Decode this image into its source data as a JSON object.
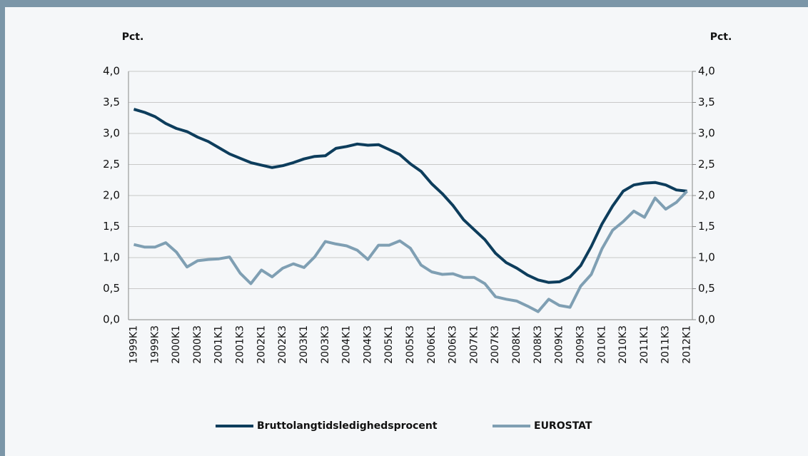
{
  "chart_data": {
    "type": "line",
    "categories": [
      "1999K1",
      null,
      "1999K3",
      null,
      "2000K1",
      null,
      "2000K3",
      null,
      "2001K1",
      null,
      "2001K3",
      null,
      "2002K1",
      null,
      "2002K3",
      null,
      "2003K1",
      null,
      "2003K3",
      null,
      "2004K1",
      null,
      "2004K3",
      null,
      "2005K1",
      null,
      "2005K3",
      null,
      "2006K1",
      null,
      "2006K3",
      null,
      "2007K1",
      null,
      "2007K3",
      null,
      "2008K1",
      null,
      "2008K3",
      null,
      "2009K1",
      null,
      "2009K3",
      null,
      "2010K1",
      null,
      "2010K3",
      null,
      "2011K1",
      null,
      "2011K3",
      null,
      "2012K1"
    ],
    "y_label": "Pct.",
    "y2_label": "Pct.",
    "series": [
      {
        "name": "Bruttolangtidsledighedsprocent",
        "color": "#0d3d5c",
        "values": [
          3.39,
          3.34,
          3.27,
          3.16,
          3.08,
          3.03,
          2.94,
          2.87,
          2.77,
          2.67,
          2.6,
          2.53,
          2.49,
          2.45,
          2.48,
          2.53,
          2.59,
          2.63,
          2.64,
          2.76,
          2.79,
          2.83,
          2.81,
          2.82,
          2.74,
          2.66,
          2.51,
          2.39,
          2.19,
          2.03,
          1.84,
          1.61,
          1.45,
          1.29,
          1.07,
          0.92,
          0.83,
          0.72,
          0.64,
          0.6,
          0.61,
          0.69,
          0.87,
          1.18,
          1.54,
          1.83,
          2.07,
          2.17,
          2.2,
          2.21,
          2.17,
          2.09,
          2.07
        ]
      },
      {
        "name": "EUROSTAT",
        "color": "#7f9fb3",
        "values": [
          1.21,
          1.17,
          1.17,
          1.24,
          1.09,
          0.85,
          0.95,
          0.97,
          0.98,
          1.01,
          0.75,
          0.58,
          0.8,
          0.69,
          0.83,
          0.9,
          0.84,
          1.01,
          1.26,
          1.22,
          1.19,
          1.12,
          0.97,
          1.2,
          1.2,
          1.27,
          1.15,
          0.88,
          0.77,
          0.73,
          0.74,
          0.68,
          0.68,
          0.58,
          0.37,
          0.33,
          0.3,
          0.22,
          0.13,
          0.33,
          0.23,
          0.2,
          0.54,
          0.73,
          1.14,
          1.44,
          1.58,
          1.75,
          1.65,
          1.96,
          1.78,
          1.89,
          2.07
        ]
      }
    ],
    "ylim": [
      0,
      4
    ],
    "yticks": [
      {
        "value": 0,
        "label": "0,0"
      },
      {
        "value": 0.5,
        "label": "0,5"
      },
      {
        "value": 1,
        "label": "1,0"
      },
      {
        "value": 1.5,
        "label": "1,5"
      },
      {
        "value": 2,
        "label": "2,0"
      },
      {
        "value": 2.5,
        "label": "2,5"
      },
      {
        "value": 3,
        "label": "3,0"
      },
      {
        "value": 3.5,
        "label": "3,5"
      },
      {
        "value": 4,
        "label": "4,0"
      }
    ],
    "y2lim": [
      0,
      4
    ],
    "y2ticks": [
      {
        "value": 0,
        "label": "0,0"
      },
      {
        "value": 0.5,
        "label": "0,5"
      },
      {
        "value": 1,
        "label": "1,0"
      },
      {
        "value": 1.5,
        "label": "1,5"
      },
      {
        "value": 2,
        "label": "2,0"
      },
      {
        "value": 2.5,
        "label": "2,5"
      },
      {
        "value": 3,
        "label": "3,0"
      },
      {
        "value": 3.5,
        "label": "3,5"
      },
      {
        "value": 4,
        "label": "4,0"
      }
    ],
    "grid": true,
    "legend": "bottom"
  }
}
